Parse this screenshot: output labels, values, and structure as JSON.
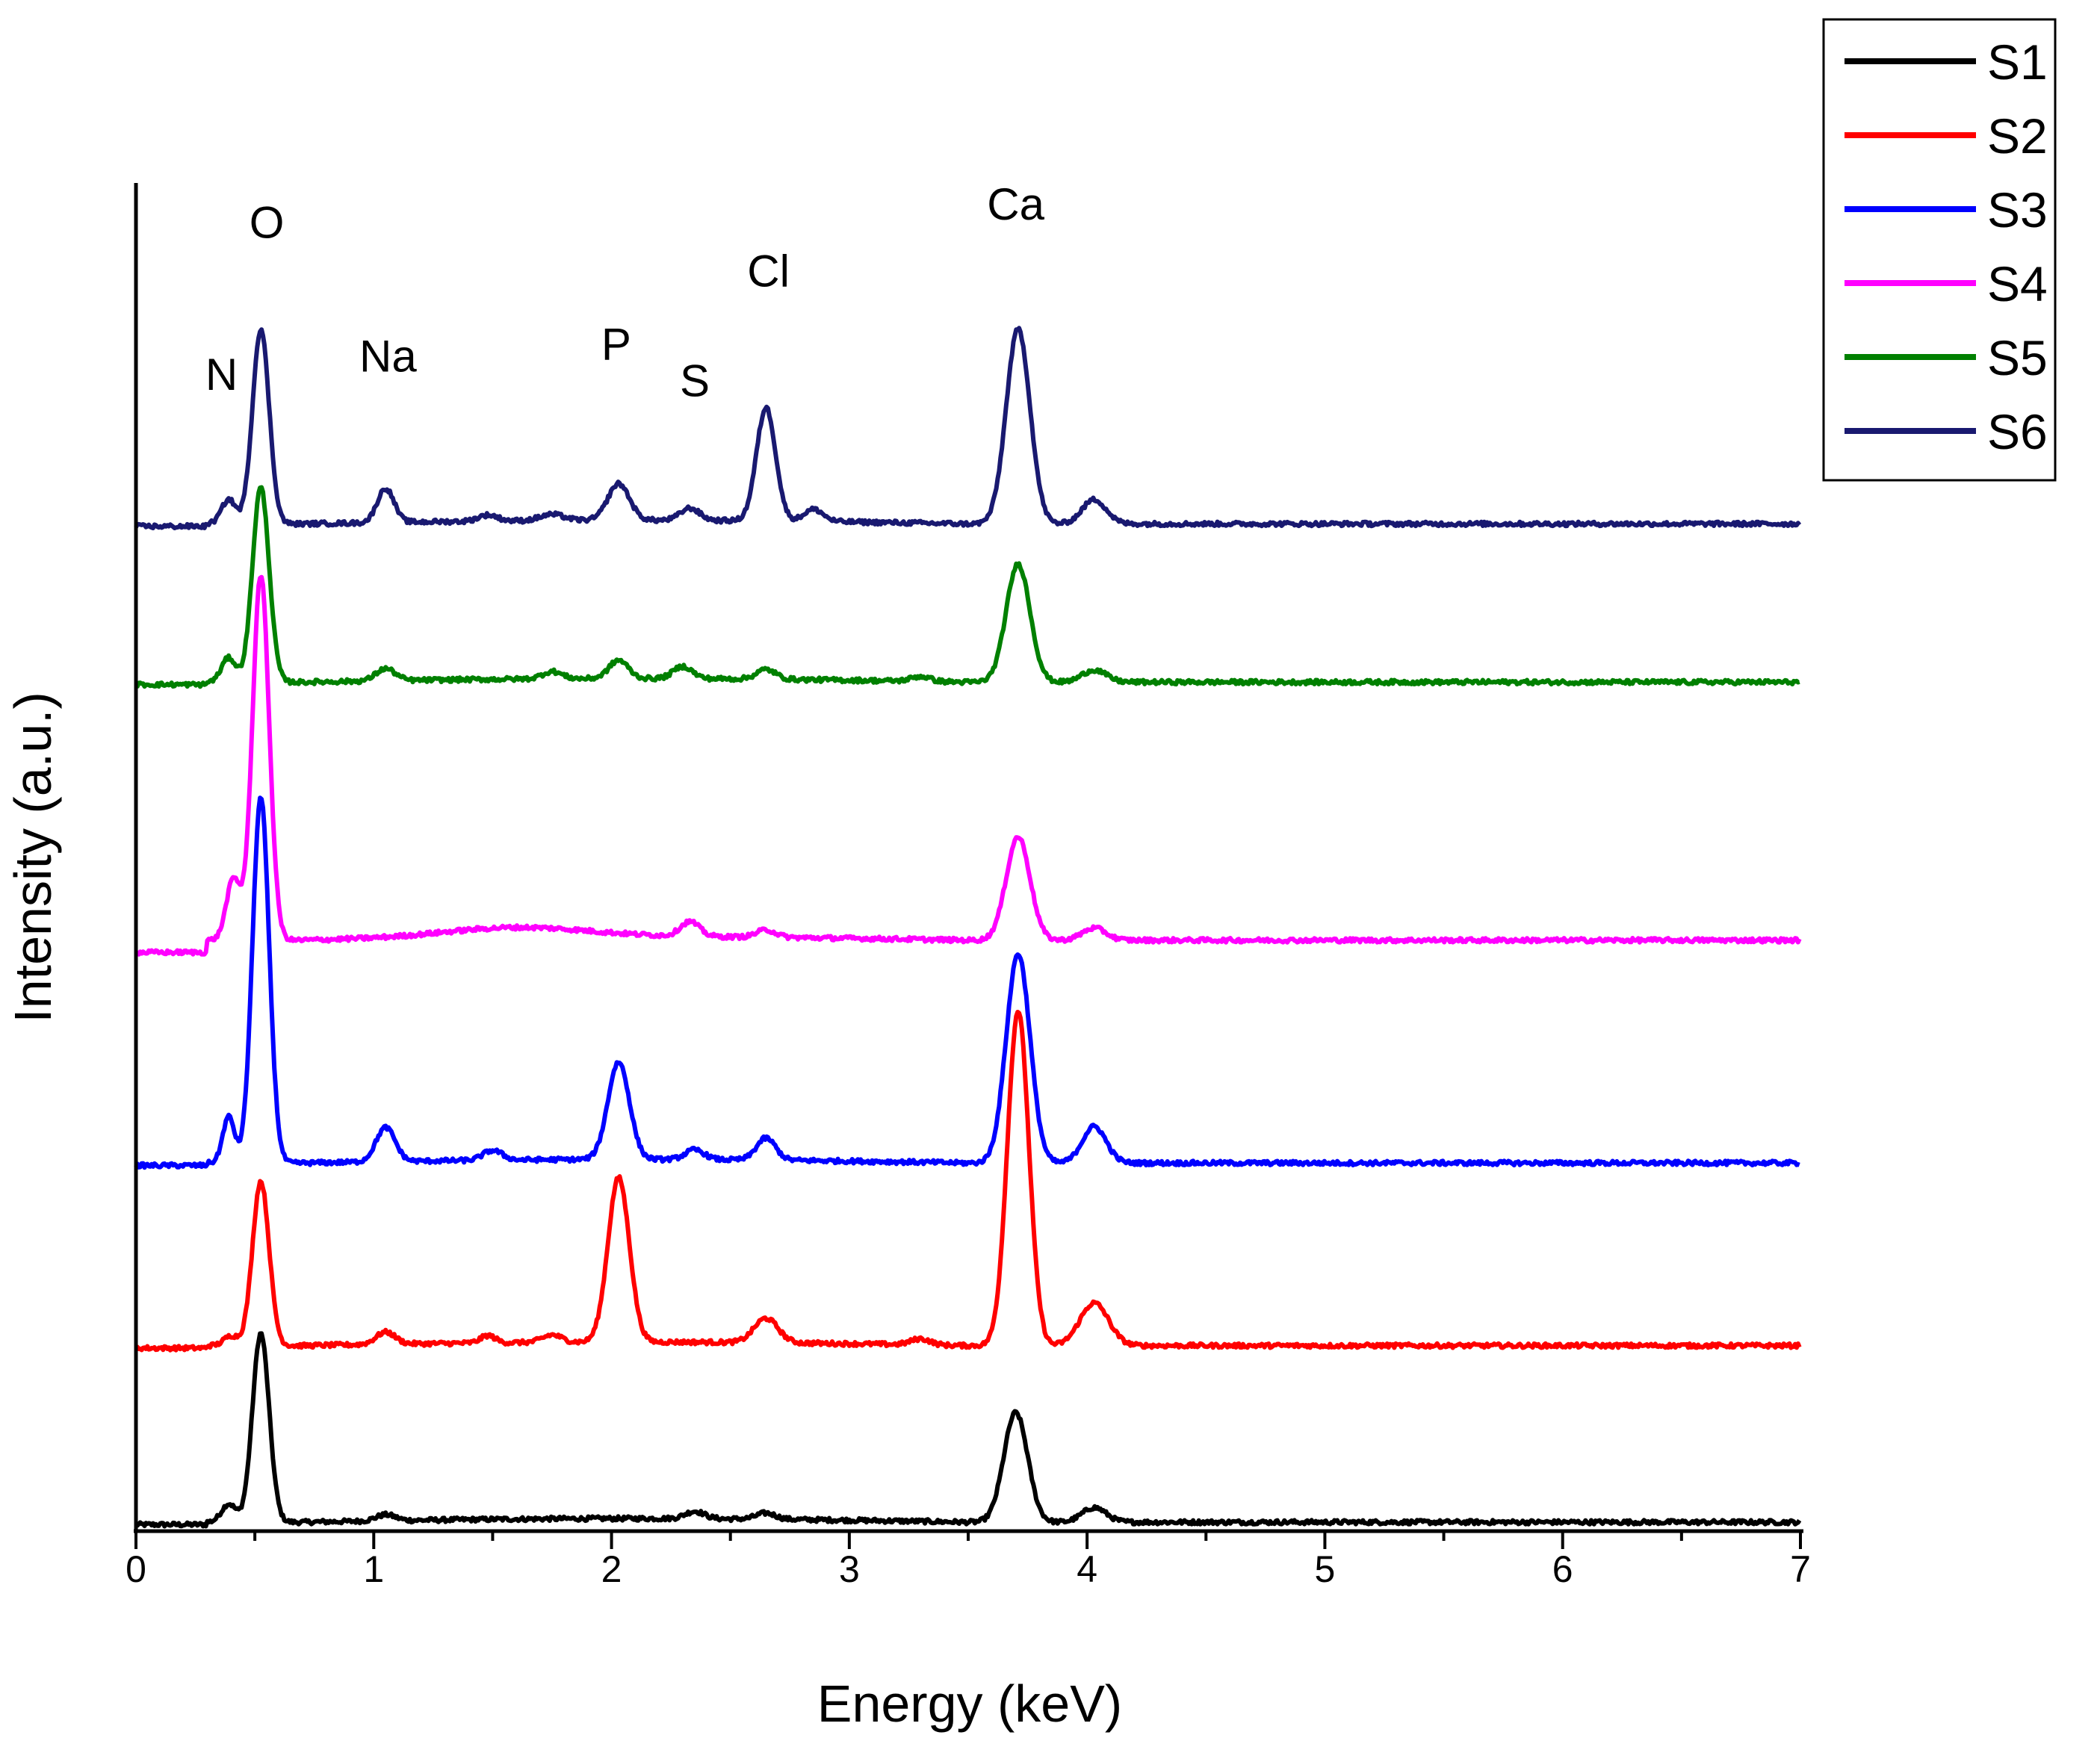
{
  "chart_data": {
    "type": "line",
    "title": "",
    "xlabel": "Energy (keV)",
    "ylabel": "Intensity (a.u.)",
    "xlim": [
      0,
      7
    ],
    "ylim": [
      0,
      11
    ],
    "x_ticks": [
      "0",
      "1",
      "2",
      "3",
      "4",
      "5",
      "6",
      "7"
    ],
    "y_ticks": [],
    "grid": false,
    "legend_position": "top-right (outside plot)",
    "series": [
      {
        "name": "S1",
        "color": "#000000",
        "offset": 0.0,
        "baseline": 0.0,
        "peaks": [
          [
            0.39,
            0.15,
            0.03
          ],
          [
            0.525,
            1.55,
            0.035
          ],
          [
            1.05,
            0.05,
            0.04
          ],
          [
            2.35,
            0.06,
            0.04
          ],
          [
            2.65,
            0.05,
            0.04
          ],
          [
            3.7,
            0.9,
            0.05
          ],
          [
            4.03,
            0.12,
            0.05
          ]
        ]
      },
      {
        "name": "S2",
        "color": "#ff0000",
        "offset": 1.45,
        "baseline": 0.0,
        "peaks": [
          [
            0.4,
            0.08,
            0.03
          ],
          [
            0.525,
            1.35,
            0.035
          ],
          [
            1.05,
            0.1,
            0.04
          ],
          [
            1.48,
            0.06,
            0.03
          ],
          [
            1.75,
            0.06,
            0.04
          ],
          [
            2.03,
            1.35,
            0.045
          ],
          [
            2.65,
            0.2,
            0.05
          ],
          [
            3.3,
            0.05,
            0.04
          ],
          [
            3.71,
            2.75,
            0.045
          ],
          [
            4.03,
            0.35,
            0.06
          ]
        ]
      },
      {
        "name": "S3",
        "color": "#0000ff",
        "offset": 2.95,
        "baseline": 0.0,
        "peaks": [
          [
            0.39,
            0.38,
            0.025
          ],
          [
            0.525,
            3.0,
            0.035
          ],
          [
            1.05,
            0.28,
            0.04
          ],
          [
            1.5,
            0.08,
            0.04
          ],
          [
            2.03,
            0.8,
            0.045
          ],
          [
            2.35,
            0.08,
            0.04
          ],
          [
            2.65,
            0.18,
            0.04
          ],
          [
            3.71,
            1.72,
            0.05
          ],
          [
            4.03,
            0.3,
            0.05
          ]
        ]
      },
      {
        "name": "S4",
        "color": "#ff00ff",
        "offset": 4.7,
        "baseline": 0.08,
        "peaks": [
          [
            0.41,
            0.5,
            0.03
          ],
          [
            0.525,
            3.0,
            0.035
          ],
          [
            1.6,
            0.08,
            0.3
          ],
          [
            2.33,
            0.12,
            0.04
          ],
          [
            2.65,
            0.06,
            0.04
          ],
          [
            3.71,
            0.85,
            0.05
          ],
          [
            4.03,
            0.1,
            0.05
          ]
        ]
      },
      {
        "name": "S5",
        "color": "#008000",
        "offset": 6.9,
        "baseline": 0.0,
        "peaks": [
          [
            0.39,
            0.2,
            0.03
          ],
          [
            0.525,
            1.6,
            0.035
          ],
          [
            1.05,
            0.1,
            0.04
          ],
          [
            1.75,
            0.06,
            0.04
          ],
          [
            2.03,
            0.15,
            0.04
          ],
          [
            2.3,
            0.1,
            0.04
          ],
          [
            2.65,
            0.08,
            0.04
          ],
          [
            3.3,
            0.04,
            0.04
          ],
          [
            3.71,
            0.97,
            0.05
          ],
          [
            4.03,
            0.1,
            0.05
          ]
        ]
      },
      {
        "name": "S6",
        "color": "#191970",
        "offset": 8.2,
        "baseline": 0.0,
        "peaks": [
          [
            0.39,
            0.2,
            0.03
          ],
          [
            0.525,
            1.6,
            0.035
          ],
          [
            1.05,
            0.28,
            0.035
          ],
          [
            1.48,
            0.05,
            0.04
          ],
          [
            1.75,
            0.05,
            0.05
          ],
          [
            2.03,
            0.3,
            0.045
          ],
          [
            2.33,
            0.1,
            0.04
          ],
          [
            2.65,
            0.93,
            0.04
          ],
          [
            2.85,
            0.1,
            0.04
          ],
          [
            3.71,
            1.6,
            0.05
          ],
          [
            4.03,
            0.2,
            0.05
          ]
        ]
      }
    ],
    "annotations": [
      {
        "text": "N",
        "x": 0.36,
        "y": 9.3
      },
      {
        "text": "O",
        "x": 0.55,
        "y": 10.55
      },
      {
        "text": "Na",
        "x": 1.06,
        "y": 9.45
      },
      {
        "text": "P",
        "x": 2.02,
        "y": 9.55
      },
      {
        "text": "S",
        "x": 2.35,
        "y": 9.25
      },
      {
        "text": "Cl",
        "x": 2.66,
        "y": 10.15
      },
      {
        "text": "Ca",
        "x": 3.7,
        "y": 10.7
      }
    ]
  }
}
